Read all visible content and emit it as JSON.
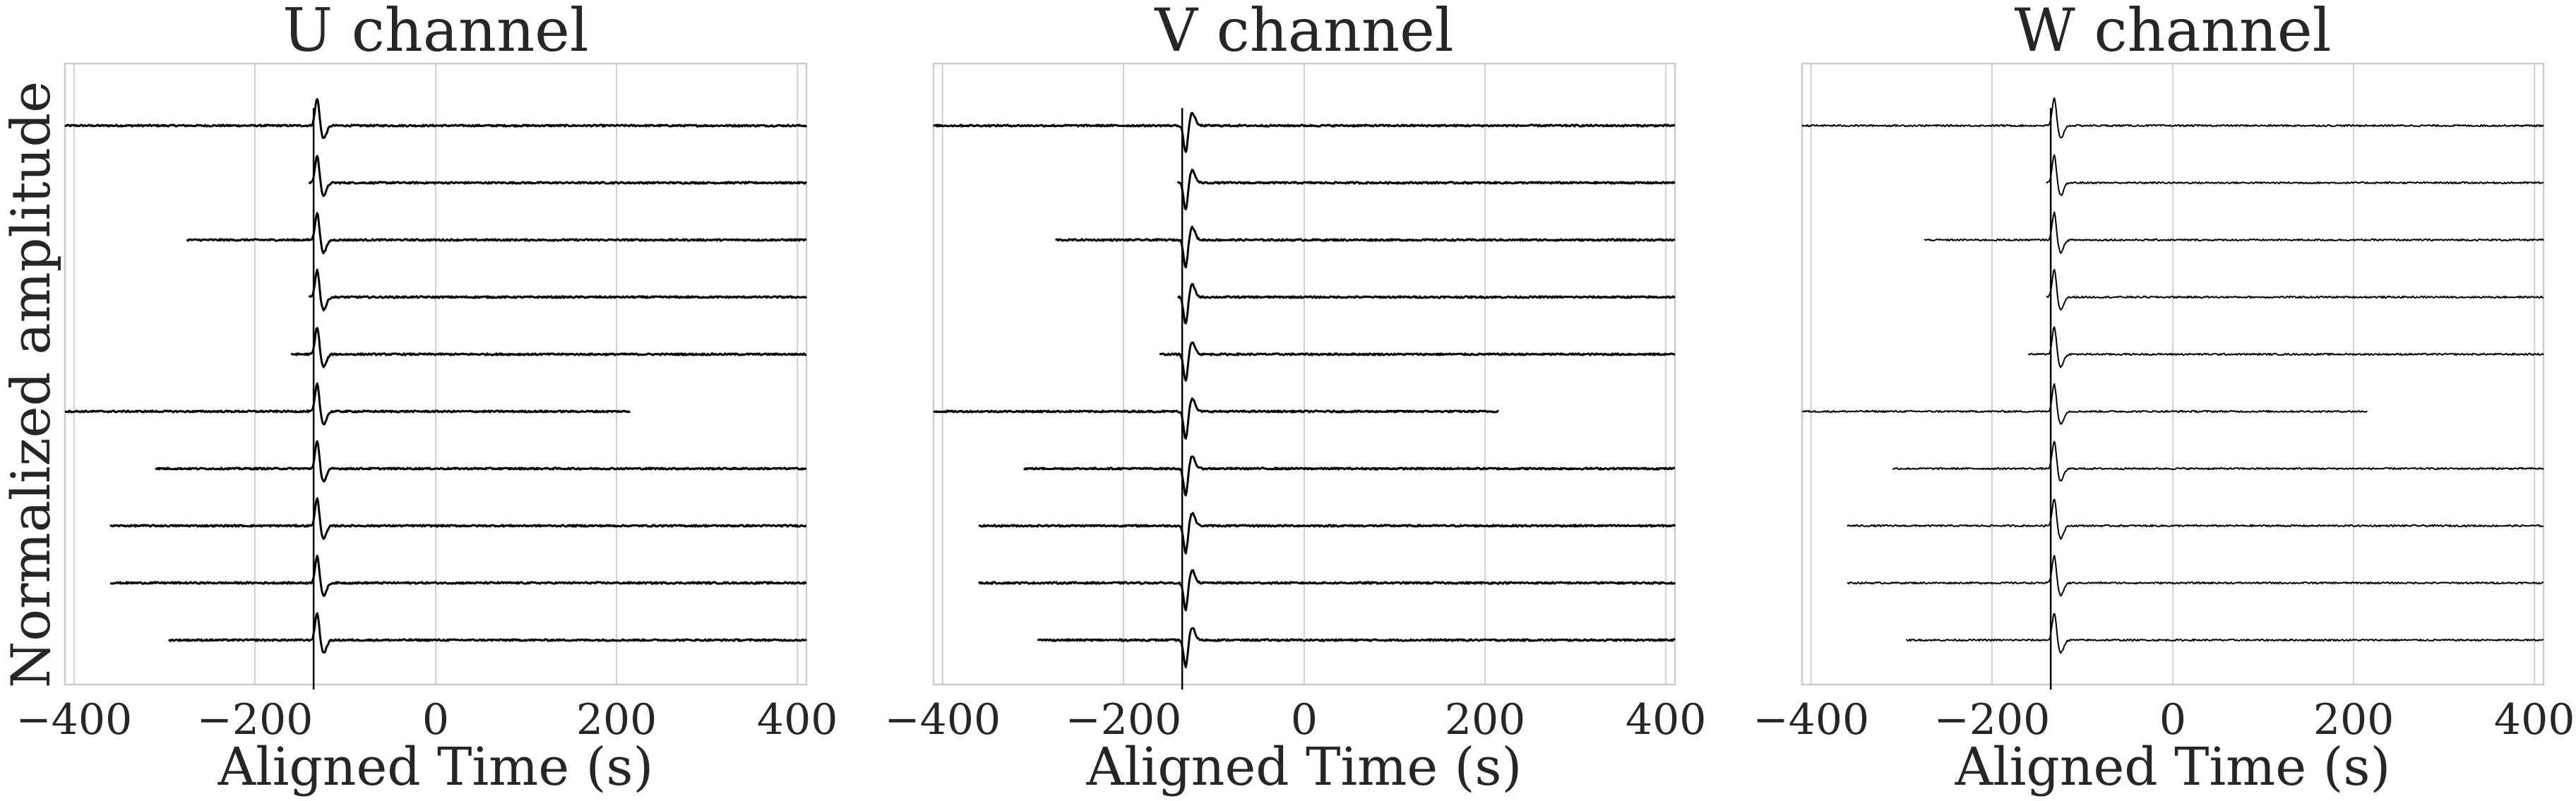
{
  "figure": {
    "ylabel": "Normalized amplitude"
  },
  "chart_data": [
    {
      "type": "line",
      "title": "U channel",
      "xlabel": "Aligned Time (s)",
      "ylabel": "Normalized amplitude",
      "xlim": [
        -410,
        410
      ],
      "xticks": [
        -400,
        -200,
        0,
        200,
        400
      ],
      "grid": true,
      "event_time": -135,
      "traces": [
        {
          "start": -410,
          "end": 410
        },
        {
          "start": -140,
          "end": 410
        },
        {
          "start": -275,
          "end": 410
        },
        {
          "start": -140,
          "end": 410
        },
        {
          "start": -160,
          "end": 410
        },
        {
          "start": -410,
          "end": 215
        },
        {
          "start": -310,
          "end": 410
        },
        {
          "start": -360,
          "end": 410
        },
        {
          "start": -360,
          "end": 410
        },
        {
          "start": -295,
          "end": 410
        }
      ]
    },
    {
      "type": "line",
      "title": "V channel",
      "xlabel": "Aligned Time (s)",
      "xlim": [
        -410,
        410
      ],
      "xticks": [
        -400,
        -200,
        0,
        200,
        400
      ],
      "grid": true,
      "event_time": -135,
      "traces": [
        {
          "start": -410,
          "end": 410
        },
        {
          "start": -140,
          "end": 410
        },
        {
          "start": -275,
          "end": 410
        },
        {
          "start": -140,
          "end": 410
        },
        {
          "start": -160,
          "end": 410
        },
        {
          "start": -410,
          "end": 215
        },
        {
          "start": -310,
          "end": 410
        },
        {
          "start": -360,
          "end": 410
        },
        {
          "start": -360,
          "end": 410
        },
        {
          "start": -295,
          "end": 410
        }
      ]
    },
    {
      "type": "line",
      "title": "W channel",
      "xlabel": "Aligned Time (s)",
      "xlim": [
        -410,
        410
      ],
      "xticks": [
        -400,
        -200,
        0,
        200,
        400
      ],
      "grid": true,
      "event_time": -135,
      "traces": [
        {
          "start": -410,
          "end": 410
        },
        {
          "start": -140,
          "end": 410
        },
        {
          "start": -275,
          "end": 410
        },
        {
          "start": -140,
          "end": 410
        },
        {
          "start": -160,
          "end": 410
        },
        {
          "start": -410,
          "end": 215
        },
        {
          "start": -310,
          "end": 410
        },
        {
          "start": -360,
          "end": 410
        },
        {
          "start": -360,
          "end": 410
        },
        {
          "start": -295,
          "end": 410
        }
      ]
    }
  ]
}
